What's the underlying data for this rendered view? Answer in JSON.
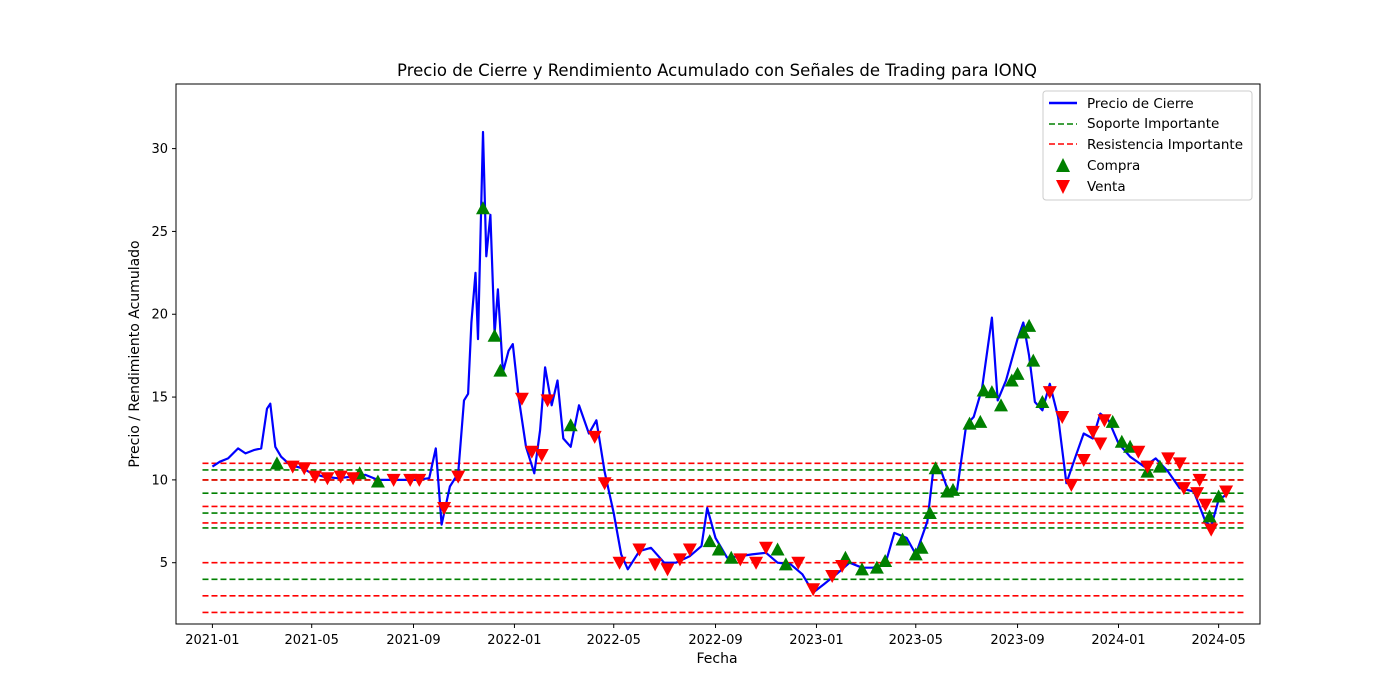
{
  "chart_data": {
    "type": "line",
    "title": "Precio de Cierre y Rendimiento Acumulado con Señales de Trading para IONQ",
    "xlabel": "Fecha",
    "ylabel": "Precio / Rendimiento Acumulado",
    "xlim": [
      "2020-11-18",
      "2024-06-20"
    ],
    "ylim": [
      1.3,
      33.9
    ],
    "x_ticks": [
      "2021-01",
      "2021-05",
      "2021-09",
      "2022-01",
      "2022-05",
      "2022-09",
      "2023-01",
      "2023-05",
      "2023-09",
      "2024-01",
      "2024-05"
    ],
    "y_ticks": [
      5,
      10,
      15,
      20,
      25,
      30
    ],
    "grid": false,
    "legend": {
      "position": "top-right",
      "entries": [
        "Precio de Cierre",
        "Soporte Importante",
        "Resistencia Importante",
        "Compra",
        "Venta"
      ]
    },
    "colors": {
      "price": "#0000ff",
      "support": "#008000",
      "resistance": "#ff0000",
      "buy": "#008000",
      "sell": "#ff0000"
    },
    "series": [
      {
        "name": "Precio de Cierre",
        "points": [
          [
            "2021-01-01",
            10.8
          ],
          [
            "2021-01-10",
            11.1
          ],
          [
            "2021-01-20",
            11.3
          ],
          [
            "2021-02-01",
            11.9
          ],
          [
            "2021-02-10",
            11.6
          ],
          [
            "2021-02-20",
            11.8
          ],
          [
            "2021-03-01",
            11.9
          ],
          [
            "2021-03-08",
            14.3
          ],
          [
            "2021-03-12",
            14.6
          ],
          [
            "2021-03-18",
            12.0
          ],
          [
            "2021-03-25",
            11.4
          ],
          [
            "2021-04-05",
            10.9
          ],
          [
            "2021-04-20",
            10.7
          ],
          [
            "2021-05-01",
            10.4
          ],
          [
            "2021-05-15",
            10.2
          ],
          [
            "2021-06-01",
            10.1
          ],
          [
            "2021-06-20",
            10.2
          ],
          [
            "2021-07-05",
            10.3
          ],
          [
            "2021-07-20",
            10.0
          ],
          [
            "2021-08-05",
            10.0
          ],
          [
            "2021-08-20",
            10.0
          ],
          [
            "2021-09-05",
            10.0
          ],
          [
            "2021-09-20",
            10.1
          ],
          [
            "2021-09-28",
            11.9
          ],
          [
            "2021-10-05",
            7.3
          ],
          [
            "2021-10-15",
            9.6
          ],
          [
            "2021-10-25",
            10.4
          ],
          [
            "2021-11-01",
            14.8
          ],
          [
            "2021-11-06",
            15.2
          ],
          [
            "2021-11-10",
            19.5
          ],
          [
            "2021-11-15",
            22.5
          ],
          [
            "2021-11-18",
            18.5
          ],
          [
            "2021-11-24",
            31.0
          ],
          [
            "2021-11-28",
            23.5
          ],
          [
            "2021-12-03",
            26.0
          ],
          [
            "2021-12-08",
            18.8
          ],
          [
            "2021-12-12",
            21.5
          ],
          [
            "2021-12-18",
            16.5
          ],
          [
            "2021-12-25",
            17.8
          ],
          [
            "2021-12-30",
            18.2
          ],
          [
            "2022-01-06",
            15.0
          ],
          [
            "2022-01-15",
            12.0
          ],
          [
            "2022-01-25",
            10.4
          ],
          [
            "2022-02-01",
            13.0
          ],
          [
            "2022-02-07",
            16.8
          ],
          [
            "2022-02-15",
            14.5
          ],
          [
            "2022-02-22",
            16.0
          ],
          [
            "2022-03-01",
            12.5
          ],
          [
            "2022-03-10",
            12.0
          ],
          [
            "2022-03-20",
            14.5
          ],
          [
            "2022-04-01",
            12.8
          ],
          [
            "2022-04-10",
            13.6
          ],
          [
            "2022-04-20",
            10.5
          ],
          [
            "2022-05-01",
            8.0
          ],
          [
            "2022-05-10",
            5.5
          ],
          [
            "2022-05-18",
            4.6
          ],
          [
            "2022-06-01",
            5.7
          ],
          [
            "2022-06-15",
            5.9
          ],
          [
            "2022-07-01",
            5.0
          ],
          [
            "2022-07-15",
            5.0
          ],
          [
            "2022-08-01",
            5.4
          ],
          [
            "2022-08-15",
            6.0
          ],
          [
            "2022-08-22",
            8.3
          ],
          [
            "2022-09-01",
            6.5
          ],
          [
            "2022-09-15",
            5.3
          ],
          [
            "2022-10-01",
            5.4
          ],
          [
            "2022-10-15",
            5.5
          ],
          [
            "2022-11-01",
            5.6
          ],
          [
            "2022-11-15",
            5.0
          ],
          [
            "2022-12-01",
            4.9
          ],
          [
            "2022-12-15",
            4.3
          ],
          [
            "2022-12-28",
            3.2
          ],
          [
            "2023-01-10",
            3.7
          ],
          [
            "2023-01-25",
            4.3
          ],
          [
            "2023-02-10",
            5.0
          ],
          [
            "2023-02-25",
            4.7
          ],
          [
            "2023-03-10",
            4.7
          ],
          [
            "2023-03-25",
            4.9
          ],
          [
            "2023-04-05",
            6.8
          ],
          [
            "2023-04-20",
            6.5
          ],
          [
            "2023-05-01",
            5.5
          ],
          [
            "2023-05-15",
            7.5
          ],
          [
            "2023-05-22",
            10.5
          ],
          [
            "2023-06-01",
            10.5
          ],
          [
            "2023-06-10",
            9.2
          ],
          [
            "2023-06-20",
            9.4
          ],
          [
            "2023-07-01",
            13.3
          ],
          [
            "2023-07-10",
            13.8
          ],
          [
            "2023-07-20",
            15.5
          ],
          [
            "2023-08-01",
            19.8
          ],
          [
            "2023-08-08",
            14.8
          ],
          [
            "2023-08-18",
            16.0
          ],
          [
            "2023-09-01",
            18.5
          ],
          [
            "2023-09-08",
            19.5
          ],
          [
            "2023-09-15",
            17.5
          ],
          [
            "2023-09-22",
            14.7
          ],
          [
            "2023-10-01",
            14.2
          ],
          [
            "2023-10-10",
            15.8
          ],
          [
            "2023-10-20",
            13.8
          ],
          [
            "2023-10-30",
            9.8
          ],
          [
            "2023-11-10",
            11.4
          ],
          [
            "2023-11-20",
            12.8
          ],
          [
            "2023-12-01",
            12.5
          ],
          [
            "2023-12-10",
            14.0
          ],
          [
            "2023-12-20",
            13.6
          ],
          [
            "2024-01-01",
            12.2
          ],
          [
            "2024-01-15",
            11.4
          ],
          [
            "2024-02-01",
            10.8
          ],
          [
            "2024-02-15",
            11.3
          ],
          [
            "2024-03-01",
            10.5
          ],
          [
            "2024-03-15",
            9.5
          ],
          [
            "2024-04-01",
            9.3
          ],
          [
            "2024-04-15",
            7.5
          ],
          [
            "2024-04-22",
            7.2
          ],
          [
            "2024-05-01",
            8.8
          ],
          [
            "2024-05-10",
            9.1
          ]
        ]
      }
    ],
    "support_levels": [
      10.6,
      10.0,
      9.2,
      8.0,
      7.1,
      4.0
    ],
    "resistance_levels": [
      11.0,
      10.0,
      8.4,
      7.4,
      5.0,
      3.0,
      2.0
    ],
    "buy_signals": [
      [
        "2021-03-20",
        11.0
      ],
      [
        "2021-06-28",
        10.4
      ],
      [
        "2021-07-20",
        9.9
      ],
      [
        "2021-11-24",
        26.4
      ],
      [
        "2021-12-08",
        18.7
      ],
      [
        "2021-12-15",
        16.6
      ],
      [
        "2022-03-10",
        13.3
      ],
      [
        "2022-08-25",
        6.3
      ],
      [
        "2022-09-05",
        5.8
      ],
      [
        "2022-09-20",
        5.3
      ],
      [
        "2022-11-15",
        5.8
      ],
      [
        "2022-11-25",
        4.9
      ],
      [
        "2023-02-05",
        5.3
      ],
      [
        "2023-02-25",
        4.6
      ],
      [
        "2023-03-15",
        4.7
      ],
      [
        "2023-03-25",
        5.1
      ],
      [
        "2023-04-15",
        6.4
      ],
      [
        "2023-05-01",
        5.5
      ],
      [
        "2023-05-08",
        5.9
      ],
      [
        "2023-05-18",
        8.0
      ],
      [
        "2023-05-25",
        10.7
      ],
      [
        "2023-06-08",
        9.3
      ],
      [
        "2023-06-15",
        9.4
      ],
      [
        "2023-07-05",
        13.4
      ],
      [
        "2023-07-18",
        13.5
      ],
      [
        "2023-07-22",
        15.4
      ],
      [
        "2023-08-01",
        15.3
      ],
      [
        "2023-08-12",
        14.5
      ],
      [
        "2023-08-25",
        16.0
      ],
      [
        "2023-09-01",
        16.4
      ],
      [
        "2023-09-08",
        18.9
      ],
      [
        "2023-09-15",
        19.3
      ],
      [
        "2023-09-20",
        17.2
      ],
      [
        "2023-10-01",
        14.7
      ],
      [
        "2023-12-25",
        13.5
      ],
      [
        "2024-01-05",
        12.3
      ],
      [
        "2024-01-15",
        12.0
      ],
      [
        "2024-02-05",
        10.5
      ],
      [
        "2024-02-20",
        10.8
      ],
      [
        "2024-04-20",
        7.8
      ],
      [
        "2024-05-01",
        9.0
      ]
    ],
    "sell_signals": [
      [
        "2021-04-08",
        10.8
      ],
      [
        "2021-04-22",
        10.7
      ],
      [
        "2021-05-05",
        10.2
      ],
      [
        "2021-05-20",
        10.1
      ],
      [
        "2021-06-05",
        10.2
      ],
      [
        "2021-06-20",
        10.1
      ],
      [
        "2021-08-08",
        10.0
      ],
      [
        "2021-08-28",
        10.0
      ],
      [
        "2021-09-08",
        10.0
      ],
      [
        "2021-10-08",
        8.3
      ],
      [
        "2021-10-25",
        10.2
      ],
      [
        "2022-01-10",
        14.9
      ],
      [
        "2022-01-22",
        11.7
      ],
      [
        "2022-02-03",
        11.5
      ],
      [
        "2022-02-10",
        14.8
      ],
      [
        "2022-04-08",
        12.6
      ],
      [
        "2022-04-20",
        9.8
      ],
      [
        "2022-05-08",
        5.0
      ],
      [
        "2022-06-01",
        5.8
      ],
      [
        "2022-06-20",
        4.9
      ],
      [
        "2022-07-05",
        4.6
      ],
      [
        "2022-07-20",
        5.2
      ],
      [
        "2022-08-01",
        5.8
      ],
      [
        "2022-10-01",
        5.2
      ],
      [
        "2022-10-20",
        5.0
      ],
      [
        "2022-11-01",
        5.9
      ],
      [
        "2022-12-10",
        5.0
      ],
      [
        "2022-12-28",
        3.4
      ],
      [
        "2023-01-20",
        4.2
      ],
      [
        "2023-02-01",
        4.8
      ],
      [
        "2023-10-10",
        15.3
      ],
      [
        "2023-10-25",
        13.8
      ],
      [
        "2023-11-05",
        9.7
      ],
      [
        "2023-11-20",
        11.2
      ],
      [
        "2023-12-01",
        12.9
      ],
      [
        "2023-12-10",
        12.2
      ],
      [
        "2023-12-15",
        13.6
      ],
      [
        "2024-01-25",
        11.7
      ],
      [
        "2024-02-05",
        10.8
      ],
      [
        "2024-03-01",
        11.3
      ],
      [
        "2024-03-15",
        11.0
      ],
      [
        "2024-03-20",
        9.5
      ],
      [
        "2024-04-05",
        9.2
      ],
      [
        "2024-04-08",
        10.0
      ],
      [
        "2024-04-15",
        8.5
      ],
      [
        "2024-04-22",
        7.0
      ],
      [
        "2024-05-10",
        9.3
      ]
    ]
  }
}
